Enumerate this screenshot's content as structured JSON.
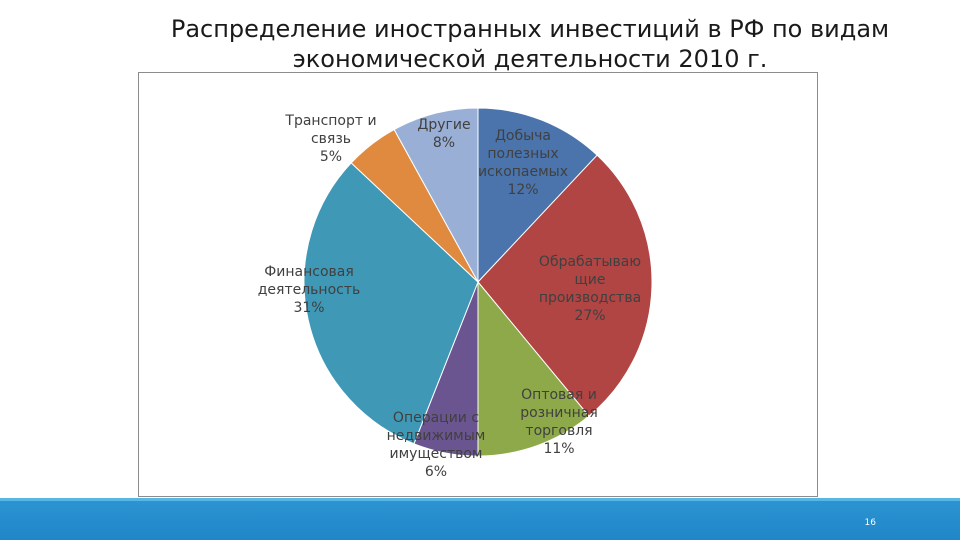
{
  "slide": {
    "title_line1": "Распределение иностранных инвестиций в РФ по видам",
    "title_line2": "экономической деятельности 2010 г.",
    "page_number": "16"
  },
  "chart_data": {
    "type": "pie",
    "title": "",
    "start_angle_deg": 0,
    "direction": "clockwise",
    "legend": "none",
    "slices": [
      {
        "label": "Добыча полезных ископаемых",
        "label_lines": [
          "Добыча",
          "полезных",
          "ископаемых",
          "12%"
        ],
        "value": 12,
        "color": "#4a74ab"
      },
      {
        "label": "Обрабатывающие производства",
        "label_lines": [
          "Обрабатываю",
          "щие",
          "производства",
          "27%"
        ],
        "value": 27,
        "color": "#b04543"
      },
      {
        "label": "Оптовая и розничная торговля",
        "label_lines": [
          "Оптовая и",
          "розничная",
          "торговля",
          "11%"
        ],
        "value": 11,
        "color": "#8ea94a"
      },
      {
        "label": "Операции с недвижимым имуществом",
        "label_lines": [
          "Операции с",
          "недвижимым",
          "имуществом",
          "6%"
        ],
        "value": 6,
        "color": "#6a5590"
      },
      {
        "label": "Финансовая деятельность",
        "label_lines": [
          "Финансовая",
          "деятельность",
          "31%"
        ],
        "value": 31,
        "color": "#3f98b5"
      },
      {
        "label": "Транспорт и связь",
        "label_lines": [
          "Транспорт и",
          "связь",
          "5%"
        ],
        "value": 5,
        "color": "#e08a3f"
      },
      {
        "label": "Другие",
        "label_lines": [
          "Другие",
          "8%"
        ],
        "value": 8,
        "color": "#9aafd6"
      }
    ]
  }
}
